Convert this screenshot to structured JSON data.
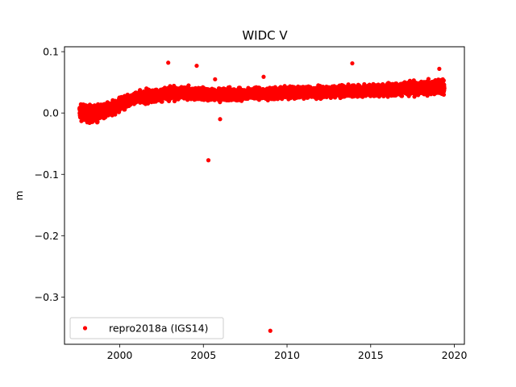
{
  "chart_data": {
    "type": "scatter",
    "title": "WIDC V",
    "xlabel": "",
    "ylabel": "m",
    "xlim": [
      1996.7,
      2020.6
    ],
    "ylim": [
      -0.377,
      0.108
    ],
    "xticks": [
      2000,
      2005,
      2010,
      2015,
      2020
    ],
    "xtick_labels": [
      "2000",
      "2005",
      "2010",
      "2015",
      "2020"
    ],
    "yticks": [
      0.1,
      0.0,
      -0.1,
      -0.2,
      -0.3
    ],
    "ytick_labels": [
      "0.1",
      "0.0",
      "−0.1",
      "−0.2",
      "−0.3"
    ],
    "grid": false,
    "legend_position": "lower-left",
    "series": [
      {
        "name": "repro2018a (IGS14)",
        "color": "#ff0000",
        "marker": "dot",
        "trend": {
          "x": [
            1997.6,
            1998.0,
            1998.5,
            1999.0,
            1999.5,
            2000.0,
            2000.5,
            2001.0,
            2002.0,
            2003.0,
            2004.0,
            2005.0,
            2006.0,
            2007.0,
            2008.0,
            2009.0,
            2010.0,
            2011.0,
            2012.0,
            2013.0,
            2014.0,
            2015.0,
            2016.0,
            2017.0,
            2018.0,
            2019.0,
            2019.4
          ],
          "y": [
            0.002,
            0.0,
            -0.002,
            0.002,
            0.006,
            0.014,
            0.02,
            0.025,
            0.028,
            0.031,
            0.033,
            0.03,
            0.03,
            0.03,
            0.032,
            0.032,
            0.033,
            0.034,
            0.034,
            0.035,
            0.036,
            0.037,
            0.038,
            0.039,
            0.04,
            0.043,
            0.04
          ],
          "spread": [
            0.012,
            0.013,
            0.013,
            0.012,
            0.012,
            0.011,
            0.01,
            0.01,
            0.01,
            0.01,
            0.01,
            0.01,
            0.009,
            0.009,
            0.009,
            0.009,
            0.009,
            0.009,
            0.009,
            0.009,
            0.009,
            0.009,
            0.01,
            0.01,
            0.011,
            0.012,
            0.012
          ]
        },
        "outliers": [
          {
            "x": 2002.9,
            "y": 0.082
          },
          {
            "x": 2004.6,
            "y": 0.077
          },
          {
            "x": 2005.3,
            "y": -0.077
          },
          {
            "x": 2005.7,
            "y": 0.055
          },
          {
            "x": 2006.0,
            "y": -0.01
          },
          {
            "x": 2008.6,
            "y": 0.059
          },
          {
            "x": 2009.0,
            "y": -0.355
          },
          {
            "x": 2013.9,
            "y": 0.081
          },
          {
            "x": 2019.1,
            "y": 0.072
          }
        ]
      }
    ]
  }
}
